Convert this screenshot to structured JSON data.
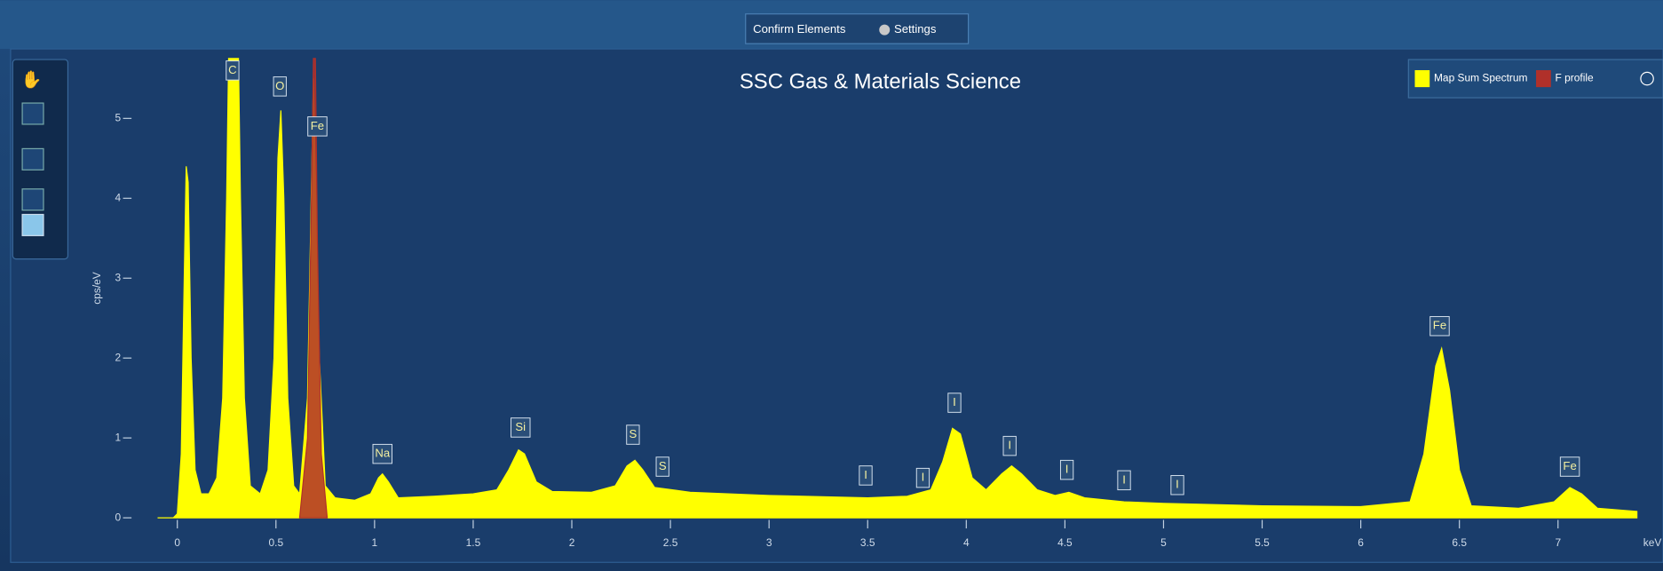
{
  "toolbar": {
    "buttons": [
      "Confirm Elements",
      "Settings"
    ]
  },
  "chart_data": {
    "type": "area",
    "title": "SSC Gas & Materials Science",
    "ylabel": "cps/eV",
    "xlabel": "keV",
    "xlim": [
      -0.2,
      7.5
    ],
    "ylim": [
      0,
      5.75
    ],
    "xticks": [
      0,
      0.5,
      1,
      1.5,
      2,
      2.5,
      3,
      3.5,
      4,
      4.5,
      5,
      5.5,
      6,
      6.5,
      7
    ],
    "yticks": [
      0,
      1,
      2,
      3,
      4,
      5
    ],
    "legend": "upper right",
    "series": [
      {
        "name": "Map Sum Spectrum",
        "color": "#ffff00",
        "x": [
          -0.1,
          -0.02,
          0.0,
          0.02,
          0.035,
          0.045,
          0.055,
          0.07,
          0.09,
          0.12,
          0.16,
          0.2,
          0.23,
          0.25,
          0.26,
          0.31,
          0.32,
          0.34,
          0.37,
          0.42,
          0.46,
          0.49,
          0.51,
          0.525,
          0.54,
          0.56,
          0.59,
          0.62,
          0.66,
          0.69,
          0.72,
          0.75,
          0.8,
          0.9,
          0.98,
          1.02,
          1.04,
          1.07,
          1.12,
          1.3,
          1.5,
          1.62,
          1.68,
          1.73,
          1.76,
          1.82,
          1.9,
          2.1,
          2.22,
          2.28,
          2.32,
          2.36,
          2.42,
          2.6,
          3.0,
          3.5,
          3.7,
          3.82,
          3.88,
          3.93,
          3.97,
          4.03,
          4.1,
          4.18,
          4.23,
          4.28,
          4.36,
          4.45,
          4.52,
          4.6,
          4.8,
          5.0,
          5.5,
          6.0,
          6.25,
          6.32,
          6.38,
          6.41,
          6.45,
          6.5,
          6.56,
          6.8,
          6.98,
          7.06,
          7.12,
          7.2,
          7.4
        ],
        "values": [
          0,
          0,
          0.05,
          0.8,
          3.0,
          4.4,
          4.2,
          2.0,
          0.6,
          0.3,
          0.3,
          0.5,
          1.5,
          4.0,
          5.75,
          5.75,
          4.0,
          1.5,
          0.4,
          0.3,
          0.6,
          2.0,
          4.5,
          5.1,
          4.0,
          1.5,
          0.4,
          0.3,
          1.5,
          5.5,
          2.0,
          0.4,
          0.25,
          0.22,
          0.3,
          0.5,
          0.55,
          0.45,
          0.25,
          0.27,
          0.3,
          0.35,
          0.6,
          0.85,
          0.8,
          0.45,
          0.33,
          0.32,
          0.4,
          0.65,
          0.72,
          0.6,
          0.38,
          0.32,
          0.28,
          0.25,
          0.27,
          0.35,
          0.7,
          1.12,
          1.05,
          0.5,
          0.35,
          0.55,
          0.65,
          0.55,
          0.35,
          0.28,
          0.32,
          0.25,
          0.2,
          0.18,
          0.15,
          0.14,
          0.2,
          0.8,
          1.9,
          2.12,
          1.6,
          0.6,
          0.15,
          0.12,
          0.2,
          0.38,
          0.3,
          0.12,
          0.08
        ]
      },
      {
        "name": "F profile",
        "color": "#b0302a",
        "x": [
          0.62,
          0.66,
          0.68,
          0.69,
          0.7,
          0.71,
          0.73,
          0.76
        ],
        "values": [
          0,
          1.0,
          4.0,
          5.75,
          5.75,
          3.5,
          0.8,
          0
        ]
      }
    ],
    "annotations": [
      {
        "text": "C",
        "x": 0.28,
        "y": 5.6
      },
      {
        "text": "O",
        "x": 0.52,
        "y": 5.4
      },
      {
        "text": "Fe",
        "x": 0.71,
        "y": 4.9
      },
      {
        "text": "Na",
        "x": 1.04,
        "y": 0.8
      },
      {
        "text": "Si",
        "x": 1.74,
        "y": 1.13
      },
      {
        "text": "S",
        "x": 2.31,
        "y": 1.04
      },
      {
        "text": "S",
        "x": 2.46,
        "y": 0.64
      },
      {
        "text": "I",
        "x": 3.49,
        "y": 0.53
      },
      {
        "text": "I",
        "x": 3.78,
        "y": 0.5
      },
      {
        "text": "I",
        "x": 3.94,
        "y": 1.44
      },
      {
        "text": "I",
        "x": 4.22,
        "y": 0.9
      },
      {
        "text": "I",
        "x": 4.51,
        "y": 0.6
      },
      {
        "text": "I",
        "x": 4.8,
        "y": 0.47
      },
      {
        "text": "I",
        "x": 5.07,
        "y": 0.41
      },
      {
        "text": "Fe",
        "x": 6.4,
        "y": 2.4
      },
      {
        "text": "Fe",
        "x": 7.06,
        "y": 0.64
      }
    ]
  }
}
